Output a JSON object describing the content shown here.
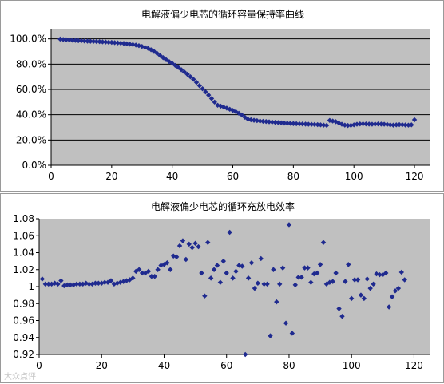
{
  "colors": {
    "plot_bg": "#c0c0c0",
    "marker": "#1f2a8f",
    "axis": "#000000"
  },
  "watermark_text": "大众点评",
  "chart_data": [
    {
      "type": "scatter",
      "title": "电解液偏少电芯的循环容量保持率曲线",
      "xlabel": "",
      "ylabel": "",
      "xlim": [
        0,
        125
      ],
      "ylim": [
        0,
        1.08
      ],
      "xticks": [
        0,
        20,
        40,
        60,
        80,
        100,
        120
      ],
      "yticks": [
        0,
        0.2,
        0.4,
        0.6,
        0.8,
        1.0
      ],
      "ytick_labels": [
        "0.0%",
        "20.0%",
        "40.0%",
        "60.0%",
        "80.0%",
        "100.0%"
      ],
      "grid": "horizontal",
      "marker": "diamond",
      "points": [
        [
          3,
          0.998
        ],
        [
          4,
          0.995
        ],
        [
          5,
          0.993
        ],
        [
          6,
          0.992
        ],
        [
          7,
          0.99
        ],
        [
          8,
          0.988
        ],
        [
          9,
          0.986
        ],
        [
          10,
          0.985
        ],
        [
          11,
          0.983
        ],
        [
          12,
          0.982
        ],
        [
          13,
          0.981
        ],
        [
          14,
          0.98
        ],
        [
          15,
          0.979
        ],
        [
          16,
          0.978
        ],
        [
          17,
          0.976
        ],
        [
          18,
          0.975
        ],
        [
          19,
          0.973
        ],
        [
          20,
          0.972
        ],
        [
          21,
          0.97
        ],
        [
          22,
          0.968
        ],
        [
          23,
          0.966
        ],
        [
          24,
          0.964
        ],
        [
          25,
          0.961
        ],
        [
          26,
          0.958
        ],
        [
          27,
          0.955
        ],
        [
          28,
          0.951
        ],
        [
          29,
          0.946
        ],
        [
          30,
          0.94
        ],
        [
          31,
          0.933
        ],
        [
          32,
          0.925
        ],
        [
          33,
          0.914
        ],
        [
          34,
          0.9
        ],
        [
          35,
          0.885
        ],
        [
          36,
          0.868
        ],
        [
          37,
          0.851
        ],
        [
          38,
          0.835
        ],
        [
          39,
          0.82
        ],
        [
          40,
          0.806
        ],
        [
          41,
          0.79
        ],
        [
          42,
          0.774
        ],
        [
          43,
          0.756
        ],
        [
          44,
          0.738
        ],
        [
          45,
          0.72
        ],
        [
          46,
          0.7
        ],
        [
          47,
          0.68
        ],
        [
          48,
          0.656
        ],
        [
          49,
          0.63
        ],
        [
          50,
          0.605
        ],
        [
          51,
          0.58
        ],
        [
          52,
          0.555
        ],
        [
          53,
          0.528
        ],
        [
          54,
          0.5
        ],
        [
          55,
          0.475
        ],
        [
          56,
          0.468
        ],
        [
          57,
          0.46
        ],
        [
          58,
          0.452
        ],
        [
          59,
          0.443
        ],
        [
          60,
          0.434
        ],
        [
          61,
          0.424
        ],
        [
          62,
          0.412
        ],
        [
          63,
          0.398
        ],
        [
          64,
          0.38
        ],
        [
          65,
          0.365
        ],
        [
          66,
          0.36
        ],
        [
          67,
          0.356
        ],
        [
          68,
          0.353
        ],
        [
          69,
          0.35
        ],
        [
          70,
          0.348
        ],
        [
          71,
          0.346
        ],
        [
          72,
          0.344
        ],
        [
          73,
          0.342
        ],
        [
          74,
          0.34
        ],
        [
          75,
          0.338
        ],
        [
          76,
          0.336
        ],
        [
          77,
          0.334
        ],
        [
          78,
          0.333
        ],
        [
          79,
          0.332
        ],
        [
          80,
          0.33
        ],
        [
          81,
          0.329
        ],
        [
          82,
          0.328
        ],
        [
          83,
          0.327
        ],
        [
          84,
          0.326
        ],
        [
          85,
          0.325
        ],
        [
          86,
          0.324
        ],
        [
          87,
          0.323
        ],
        [
          88,
          0.322
        ],
        [
          89,
          0.32
        ],
        [
          90,
          0.318
        ],
        [
          91,
          0.316
        ],
        [
          92,
          0.355
        ],
        [
          93,
          0.35
        ],
        [
          94,
          0.345
        ],
        [
          95,
          0.335
        ],
        [
          96,
          0.325
        ],
        [
          97,
          0.318
        ],
        [
          98,
          0.315
        ],
        [
          99,
          0.316
        ],
        [
          100,
          0.32
        ],
        [
          101,
          0.325
        ],
        [
          102,
          0.327
        ],
        [
          103,
          0.328
        ],
        [
          104,
          0.327
        ],
        [
          105,
          0.326
        ],
        [
          106,
          0.325
        ],
        [
          107,
          0.326
        ],
        [
          108,
          0.327
        ],
        [
          109,
          0.326
        ],
        [
          110,
          0.325
        ],
        [
          111,
          0.323
        ],
        [
          112,
          0.32
        ],
        [
          113,
          0.318
        ],
        [
          114,
          0.32
        ],
        [
          115,
          0.322
        ],
        [
          116,
          0.321
        ],
        [
          117,
          0.319
        ],
        [
          118,
          0.318
        ],
        [
          119,
          0.32
        ],
        [
          120,
          0.36
        ]
      ]
    },
    {
      "type": "scatter",
      "title": "电解液偏少电芯的循环充放电效率",
      "xlabel": "",
      "ylabel": "",
      "xlim": [
        0,
        125
      ],
      "ylim": [
        0.92,
        1.08
      ],
      "xticks": [
        0,
        20,
        40,
        60,
        80,
        100,
        120
      ],
      "yticks": [
        0.92,
        0.94,
        0.96,
        0.98,
        1.0,
        1.02,
        1.04,
        1.06,
        1.08
      ],
      "ytick_labels": [
        "0.92",
        "0.94",
        "0.96",
        "0.98",
        "1",
        "1.02",
        "1.04",
        "1.06",
        "1.08"
      ],
      "grid": "none",
      "marker": "diamond",
      "points": [
        [
          1,
          1.009
        ],
        [
          2,
          1.003
        ],
        [
          3,
          1.003
        ],
        [
          4,
          1.003
        ],
        [
          5,
          1.004
        ],
        [
          6,
          1.003
        ],
        [
          7,
          1.007
        ],
        [
          8,
          1.001
        ],
        [
          9,
          1.002
        ],
        [
          10,
          1.002
        ],
        [
          11,
          1.002
        ],
        [
          12,
          1.003
        ],
        [
          13,
          1.003
        ],
        [
          14,
          1.003
        ],
        [
          15,
          1.004
        ],
        [
          16,
          1.003
        ],
        [
          17,
          1.003
        ],
        [
          18,
          1.004
        ],
        [
          19,
          1.004
        ],
        [
          20,
          1.004
        ],
        [
          21,
          1.005
        ],
        [
          22,
          1.005
        ],
        [
          23,
          1.007
        ],
        [
          24,
          1.003
        ],
        [
          25,
          1.004
        ],
        [
          26,
          1.005
        ],
        [
          27,
          1.006
        ],
        [
          28,
          1.007
        ],
        [
          29,
          1.008
        ],
        [
          30,
          1.01
        ],
        [
          31,
          1.018
        ],
        [
          32,
          1.02
        ],
        [
          33,
          1.016
        ],
        [
          34,
          1.016
        ],
        [
          35,
          1.018
        ],
        [
          36,
          1.012
        ],
        [
          37,
          1.012
        ],
        [
          38,
          1.02
        ],
        [
          39,
          1.025
        ],
        [
          40,
          1.026
        ],
        [
          41,
          1.028
        ],
        [
          42,
          1.02
        ],
        [
          43,
          1.036
        ],
        [
          44,
          1.035
        ],
        [
          45,
          1.048
        ],
        [
          46,
          1.054
        ],
        [
          47,
          1.032
        ],
        [
          48,
          1.05
        ],
        [
          49,
          1.046
        ],
        [
          50,
          1.051
        ],
        [
          51,
          1.047
        ],
        [
          52,
          1.016
        ],
        [
          53,
          0.989
        ],
        [
          54,
          1.052
        ],
        [
          55,
          1.01
        ],
        [
          56,
          1.02
        ],
        [
          57,
          1.025
        ],
        [
          58,
          1.005
        ],
        [
          59,
          1.03
        ],
        [
          60,
          1.016
        ],
        [
          61,
          1.064
        ],
        [
          62,
          1.01
        ],
        [
          63,
          1.018
        ],
        [
          64,
          1.025
        ],
        [
          65,
          1.024
        ],
        [
          66,
          0.92
        ],
        [
          67,
          1.01
        ],
        [
          68,
          1.028
        ],
        [
          69,
          0.998
        ],
        [
          70,
          1.004
        ],
        [
          71,
          1.033
        ],
        [
          72,
          1.003
        ],
        [
          73,
          1.003
        ],
        [
          74,
          0.942
        ],
        [
          75,
          1.02
        ],
        [
          76,
          0.982
        ],
        [
          77,
          1.003
        ],
        [
          78,
          1.022
        ],
        [
          79,
          0.957
        ],
        [
          80,
          1.073
        ],
        [
          81,
          0.945
        ],
        [
          82,
          1.002
        ],
        [
          83,
          1.011
        ],
        [
          84,
          1.011
        ],
        [
          85,
          1.022
        ],
        [
          86,
          1.022
        ],
        [
          87,
          1.005
        ],
        [
          88,
          1.015
        ],
        [
          89,
          1.016
        ],
        [
          90,
          1.026
        ],
        [
          91,
          1.052
        ],
        [
          92,
          1.003
        ],
        [
          93,
          1.005
        ],
        [
          94,
          1.006
        ],
        [
          95,
          1.016
        ],
        [
          96,
          0.974
        ],
        [
          97,
          0.965
        ],
        [
          98,
          1.006
        ],
        [
          99,
          1.026
        ],
        [
          100,
          0.986
        ],
        [
          101,
          1.008
        ],
        [
          102,
          1.008
        ],
        [
          103,
          0.99
        ],
        [
          104,
          0.986
        ],
        [
          105,
          1.009
        ],
        [
          106,
          0.998
        ],
        [
          107,
          1.003
        ],
        [
          108,
          1.015
        ],
        [
          109,
          1.014
        ],
        [
          110,
          1.014
        ],
        [
          111,
          1.016
        ],
        [
          112,
          0.976
        ],
        [
          113,
          0.988
        ],
        [
          114,
          0.995
        ],
        [
          115,
          0.998
        ],
        [
          116,
          1.017
        ],
        [
          117,
          1.008
        ]
      ]
    }
  ]
}
